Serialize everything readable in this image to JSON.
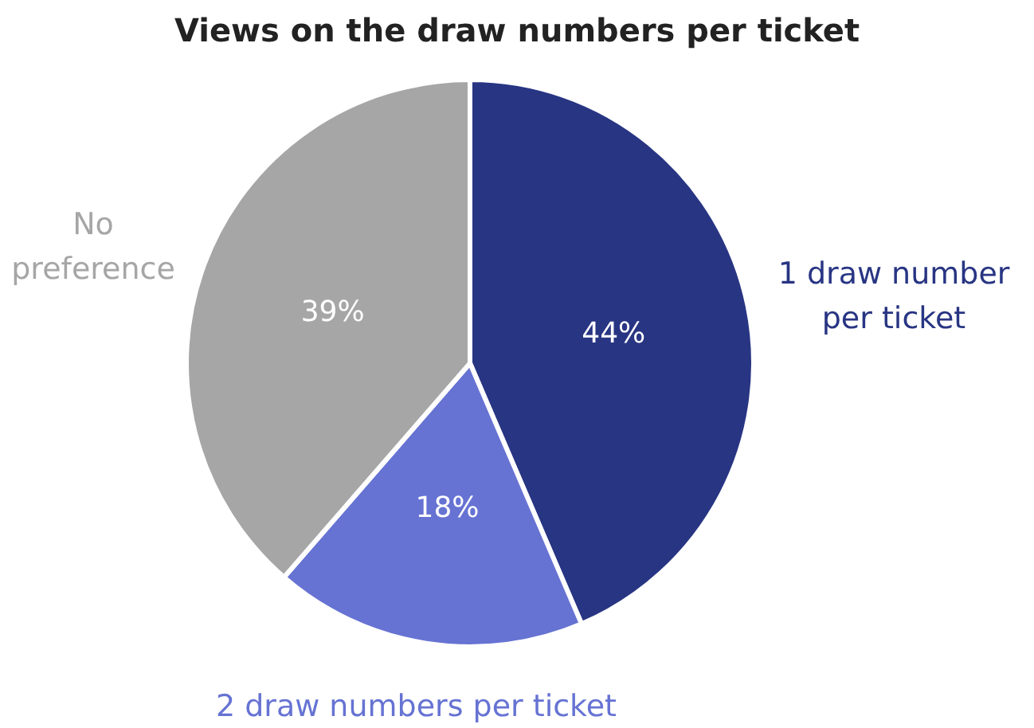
{
  "chart_data": {
    "type": "pie",
    "title": "Views on the draw numbers per ticket",
    "categories": [
      "1 draw number per ticket",
      "2 draw numbers per ticket",
      "No preference"
    ],
    "values": [
      44,
      18,
      39
    ],
    "colors": [
      "#283583",
      "#6673d3",
      "#a6a6a6"
    ],
    "value_labels": [
      "44%",
      "18%",
      "39%"
    ],
    "data_labels": true
  }
}
